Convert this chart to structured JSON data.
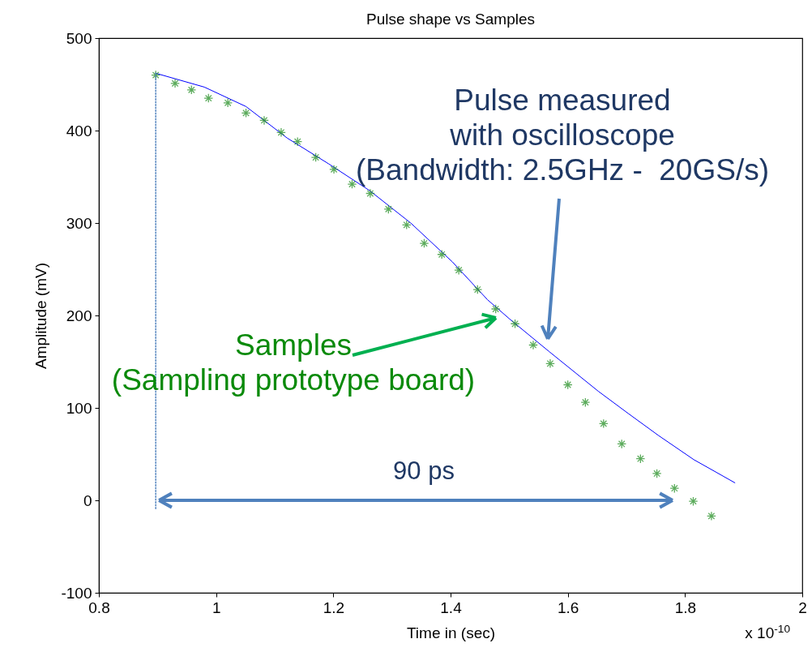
{
  "chart_data": {
    "type": "scatter",
    "title": "Pulse shape vs Samples",
    "xlabel": "Time in (sec)",
    "ylabel": "Amplitude (mV)",
    "xlim": [
      0.8,
      2
    ],
    "ylim": [
      -100,
      500
    ],
    "xticks": [
      0.8,
      1,
      1.2,
      1.4,
      1.6,
      1.8,
      2
    ],
    "yticks": [
      -100,
      0,
      100,
      200,
      300,
      400,
      500
    ],
    "series": [
      {
        "type": "line",
        "color": "#0000ff",
        "marker": "none",
        "line_style": "solid",
        "x": [
          0.897,
          0.98,
          1.051,
          1.121,
          1.192,
          1.262,
          1.332,
          1.403,
          1.463,
          1.501,
          1.568,
          1.652,
          1.703,
          1.755,
          1.815,
          1.885
        ],
        "values": [
          462,
          447,
          426,
          392,
          364,
          335,
          300,
          258,
          217,
          196,
          161,
          118,
          94,
          70,
          44,
          19
        ]
      },
      {
        "color": "#1a8a1a",
        "marker": "cross",
        "x": [
          0.897,
          0.93,
          0.958,
          0.987,
          1.02,
          1.051,
          1.082,
          1.111,
          1.139,
          1.17,
          1.201,
          1.232,
          1.263,
          1.294,
          1.325,
          1.355,
          1.385,
          1.414,
          1.446,
          1.477,
          1.51,
          1.541,
          1.57,
          1.6,
          1.63,
          1.661,
          1.692,
          1.724,
          1.752,
          1.782,
          1.814,
          1.845
        ],
        "values": [
          460,
          451,
          444,
          435,
          430,
          419,
          411,
          398,
          388,
          371,
          358,
          342,
          332,
          315,
          298,
          278,
          266,
          249,
          228,
          207,
          191,
          168,
          148,
          125,
          106,
          83,
          61,
          45,
          29,
          13,
          -1,
          -17
        ]
      },
      {
        "type": "line",
        "color": "#4f81bd",
        "marker": "none",
        "line_style": "dotted",
        "x": [
          0.897,
          0.897
        ],
        "values": [
          462,
          -9
        ]
      }
    ],
    "annotations": [
      "Pulse measured\nwith oscilloscope\n(Bandwidth: 2.5GHz -  20GS/s)",
      "Samples\n(Sampling prototype board)",
      "90 ps",
      "x 10$^{-10}$"
    ]
  }
}
